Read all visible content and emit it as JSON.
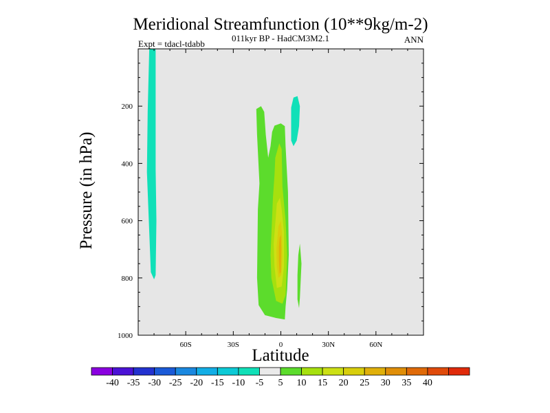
{
  "chart_data": {
    "type": "heatmap",
    "title": "Meridional Streamfunction (10**9kg/m-2)",
    "subtitle": "011kyr BP - HadCM3M2.1",
    "left_label": "Expt = tdacl-tdabb",
    "right_label": "ANN",
    "xlabel": "Latitude",
    "ylabel": "Pressure (in hPa)",
    "xlim": [
      -90,
      90
    ],
    "ylim": [
      1000,
      0
    ],
    "x_ticks": [
      {
        "value": -60,
        "label": "60S"
      },
      {
        "value": -30,
        "label": "30S"
      },
      {
        "value": 0,
        "label": "0"
      },
      {
        "value": 30,
        "label": "30N"
      },
      {
        "value": 60,
        "label": "60N"
      }
    ],
    "y_ticks": [
      {
        "value": 200,
        "label": "200"
      },
      {
        "value": 400,
        "label": "400"
      },
      {
        "value": 600,
        "label": "600"
      },
      {
        "value": 800,
        "label": "800"
      },
      {
        "value": 1000,
        "label": "1000"
      }
    ],
    "background_color": "#e6e6e6",
    "colorbar": {
      "colors": [
        "#8a00e0",
        "#4b12d6",
        "#2332d0",
        "#1a5ad8",
        "#1a88e0",
        "#12aee6",
        "#0ccad6",
        "#10e0b8",
        "#eaeaea",
        "#5cdc2c",
        "#a6e00e",
        "#cce014",
        "#d8ce0c",
        "#e0b00a",
        "#e08e08",
        "#e06a08",
        "#e04a0a",
        "#e02a0a"
      ],
      "labels": [
        "-40",
        "-35",
        "-30",
        "-25",
        "-20",
        "-15",
        "-10",
        "-5",
        "5",
        "10",
        "15",
        "20",
        "25",
        "30",
        "35",
        "40"
      ]
    },
    "contours": [
      {
        "level": "-5 to -10",
        "color": "#10e0b8",
        "points": [
          [
            -83,
            0
          ],
          [
            -79,
            0
          ],
          [
            -79,
            420
          ],
          [
            -78.5,
            600
          ],
          [
            -79,
            790
          ],
          [
            -80,
            805
          ],
          [
            -82,
            780
          ],
          [
            -83,
            640
          ],
          [
            -84.5,
            430
          ],
          [
            -84,
            220
          ]
        ]
      },
      {
        "level": "-5 to -10",
        "color": "#10e0b8",
        "points": [
          [
            6.5,
            205
          ],
          [
            8,
            170
          ],
          [
            10.5,
            165
          ],
          [
            12,
            200
          ],
          [
            11.5,
            270
          ],
          [
            10,
            320
          ],
          [
            8,
            340
          ],
          [
            6.5,
            320
          ],
          [
            6.5,
            260
          ]
        ]
      },
      {
        "level": "5 to 10",
        "color": "#5cdc2c",
        "points": [
          [
            -15.5,
            210
          ],
          [
            -12.5,
            200
          ],
          [
            -10.5,
            220
          ],
          [
            -9.5,
            300
          ],
          [
            -8,
            380
          ],
          [
            -6.5,
            340
          ],
          [
            -5.5,
            290
          ],
          [
            -4,
            268
          ],
          [
            0,
            260
          ],
          [
            2.5,
            270
          ],
          [
            3,
            340
          ],
          [
            4.5,
            500
          ],
          [
            5,
            720
          ],
          [
            4,
            840
          ],
          [
            3,
            900
          ],
          [
            2.5,
            945
          ],
          [
            -3,
            940
          ],
          [
            -10,
            930
          ],
          [
            -14,
            895
          ],
          [
            -15,
            800
          ],
          [
            -14.5,
            560
          ],
          [
            -13.5,
            470
          ],
          [
            -15,
            300
          ]
        ]
      },
      {
        "level": "5 to 10",
        "color": "#5cdc2c",
        "points": [
          [
            10.5,
            790
          ],
          [
            11,
            720
          ],
          [
            12,
            680
          ],
          [
            13,
            750
          ],
          [
            12,
            870
          ],
          [
            11.5,
            905
          ],
          [
            10.5,
            875
          ]
        ]
      },
      {
        "level": "10 to 15",
        "color": "#a6e00e",
        "points": [
          [
            -3.5,
            380
          ],
          [
            -1,
            330
          ],
          [
            0.5,
            350
          ],
          [
            1,
            480
          ],
          [
            3,
            600
          ],
          [
            4,
            720
          ],
          [
            3,
            860
          ],
          [
            1,
            890
          ],
          [
            -3,
            880
          ],
          [
            -6,
            800
          ],
          [
            -6.5,
            720
          ],
          [
            -5,
            520
          ],
          [
            -4,
            440
          ]
        ]
      },
      {
        "level": "15 to 20",
        "color": "#cce014",
        "points": [
          [
            -2.5,
            540
          ],
          [
            -0.5,
            520
          ],
          [
            0.5,
            560
          ],
          [
            2,
            640
          ],
          [
            2,
            760
          ],
          [
            0.5,
            830
          ],
          [
            -2.5,
            835
          ],
          [
            -4,
            760
          ],
          [
            -4.5,
            680
          ],
          [
            -3.5,
            610
          ]
        ]
      },
      {
        "level": "20 to 25",
        "color": "#d8ce0c",
        "points": [
          [
            -1.5,
            620
          ],
          [
            0,
            600
          ],
          [
            0.8,
            650
          ],
          [
            1,
            730
          ],
          [
            0.3,
            790
          ],
          [
            -1.5,
            800
          ],
          [
            -2.5,
            760
          ],
          [
            -2.8,
            700
          ],
          [
            -2,
            650
          ]
        ]
      },
      {
        "level": "25 to 30",
        "color": "#e0b00a",
        "points": [
          [
            -0.8,
            660
          ],
          [
            0,
            650
          ],
          [
            0.3,
            700
          ],
          [
            0,
            780
          ],
          [
            -0.8,
            785
          ],
          [
            -1.2,
            740
          ],
          [
            -1.2,
            690
          ]
        ]
      }
    ]
  }
}
